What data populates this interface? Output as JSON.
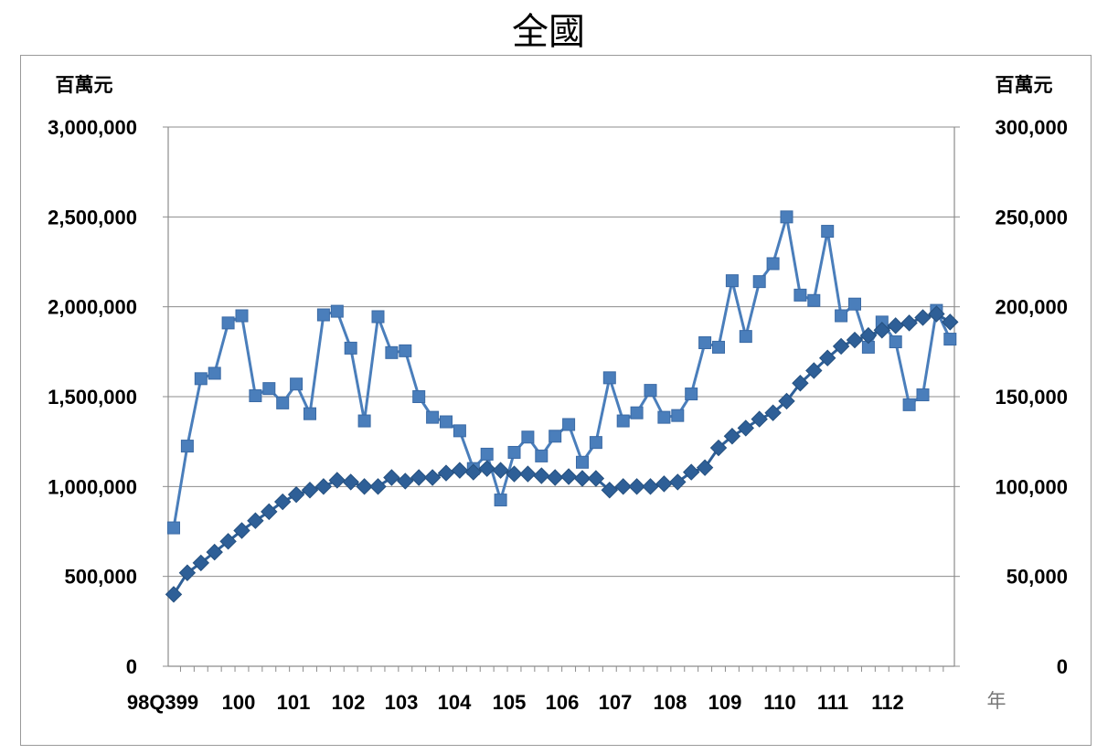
{
  "title": "全國",
  "chart_data": {
    "type": "line",
    "y_left": {
      "unit": "百萬元",
      "range": [
        0,
        3000000
      ],
      "ticks": [
        "0",
        "500,000",
        "1,000,000",
        "1,500,000",
        "2,000,000",
        "2,500,000",
        "3,000,000"
      ]
    },
    "y_right": {
      "unit": "百萬元",
      "range": [
        0,
        300000
      ],
      "ticks": [
        "0",
        "50,000",
        "100,000",
        "150,000",
        "200,000",
        "250,000",
        "300,000"
      ]
    },
    "x_unit": "年",
    "x_labels": [
      "98Q399",
      "100",
      "101",
      "102",
      "103",
      "104",
      "105",
      "106",
      "107",
      "108",
      "109",
      "110",
      "111",
      "112"
    ],
    "grid": true,
    "series": [
      {
        "marker": "square",
        "axis": "right",
        "color": "#4a7ebb",
        "values": [
          77000,
          122500,
          160000,
          163000,
          191000,
          195000,
          150500,
          154500,
          146500,
          157000,
          140500,
          195500,
          197500,
          177000,
          136500,
          194500,
          174500,
          175500,
          150000,
          138500,
          136000,
          131000,
          110000,
          118000,
          92500,
          119000,
          127500,
          117000,
          128000,
          134500,
          113500,
          124500,
          160500,
          136500,
          141000,
          153500,
          138500,
          139500,
          151500,
          180000,
          177500,
          214500,
          183500,
          214000,
          224000,
          250000,
          206500,
          203500,
          242000,
          195000,
          201500,
          177500,
          191500,
          180500,
          145500,
          151000,
          198000,
          182000
        ]
      },
      {
        "marker": "diamond",
        "axis": "left",
        "color": "#2e5f97",
        "values": [
          400000,
          520000,
          575000,
          635000,
          695000,
          755000,
          810000,
          860000,
          915000,
          955000,
          980000,
          1000000,
          1035000,
          1025000,
          1000000,
          1000000,
          1050000,
          1030000,
          1050000,
          1050000,
          1075000,
          1090000,
          1080000,
          1100000,
          1090000,
          1070000,
          1070000,
          1060000,
          1050000,
          1055000,
          1045000,
          1045000,
          980000,
          1000000,
          1000000,
          1000000,
          1015000,
          1025000,
          1080000,
          1105000,
          1215000,
          1280000,
          1325000,
          1375000,
          1410000,
          1475000,
          1575000,
          1645000,
          1715000,
          1780000,
          1815000,
          1840000,
          1870000,
          1895000,
          1910000,
          1940000,
          1960000,
          1915000
        ]
      }
    ]
  }
}
